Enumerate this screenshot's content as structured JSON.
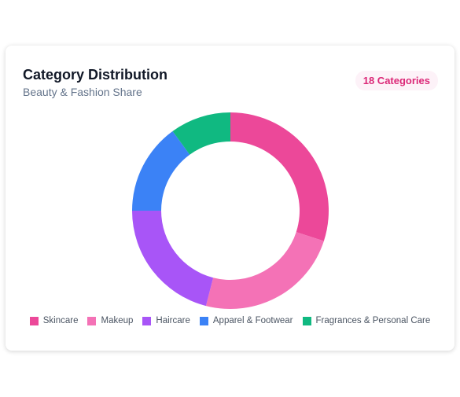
{
  "chart_data": {
    "type": "donut",
    "title": "Category Distribution",
    "subtitle": "Beauty & Fashion Share",
    "badge": "18 Categories",
    "categories": [
      "Skincare",
      "Makeup",
      "Haircare",
      "Apparel & Footwear",
      "Fragrances & Personal Care"
    ],
    "values": [
      30,
      24,
      21,
      15,
      10
    ],
    "colors": [
      "#ec4899",
      "#f472b6",
      "#a855f7",
      "#3b82f6",
      "#10b981"
    ],
    "legend": "bottom"
  }
}
